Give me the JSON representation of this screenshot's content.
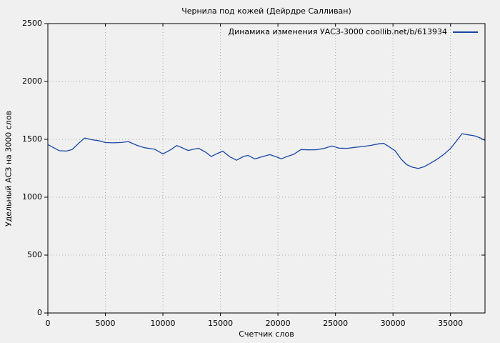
{
  "title": "Чернила под кожей (Дейрдре Салливан)",
  "legend": {
    "label": "Динамика изменения УАСЗ-3000 coollib.net/b/613934"
  },
  "chart_data": {
    "type": "line",
    "title": "Чернила под кожей (Дейрдре Салливан)",
    "xlabel": "Счетчик слов",
    "ylabel": "Удельный АСЗ на 3000 слов",
    "xlim": [
      0,
      38000
    ],
    "ylim": [
      0,
      2500
    ],
    "xticks": [
      0,
      5000,
      10000,
      15000,
      20000,
      25000,
      30000,
      35000
    ],
    "xtick_labels": [
      "0",
      "5000",
      "10000",
      "15000",
      "20000",
      "25000",
      "30000",
      "35000"
    ],
    "yticks": [
      0,
      500,
      1000,
      1500,
      2000,
      2500
    ],
    "ytick_labels": [
      "0",
      "500",
      "1000",
      "1500",
      "2000",
      "2500"
    ],
    "grid": true,
    "legend_position": "top-right-inside",
    "colors": {
      "background": "#f0f0f0",
      "grid": "#a8a8a8",
      "axis": "#000000",
      "line": "#1a47a5"
    },
    "series": [
      {
        "name": "Динамика изменения УАСЗ-3000 coollib.net/b/613934",
        "color": "#1a47a5",
        "points": [
          [
            0,
            1455
          ],
          [
            500,
            1428
          ],
          [
            1000,
            1402
          ],
          [
            1600,
            1399
          ],
          [
            2100,
            1411
          ],
          [
            2700,
            1468
          ],
          [
            3200,
            1512
          ],
          [
            3800,
            1497
          ],
          [
            4400,
            1489
          ],
          [
            5000,
            1472
          ],
          [
            5700,
            1470
          ],
          [
            6400,
            1473
          ],
          [
            7000,
            1481
          ],
          [
            7700,
            1450
          ],
          [
            8400,
            1428
          ],
          [
            9300,
            1414
          ],
          [
            10000,
            1374
          ],
          [
            10700,
            1412
          ],
          [
            11200,
            1447
          ],
          [
            11700,
            1426
          ],
          [
            12200,
            1404
          ],
          [
            12700,
            1415
          ],
          [
            13100,
            1423
          ],
          [
            13700,
            1390
          ],
          [
            14200,
            1352
          ],
          [
            14700,
            1376
          ],
          [
            15200,
            1398
          ],
          [
            15800,
            1350
          ],
          [
            16400,
            1320
          ],
          [
            17000,
            1352
          ],
          [
            17400,
            1362
          ],
          [
            18000,
            1331
          ],
          [
            18700,
            1352
          ],
          [
            19300,
            1368
          ],
          [
            19800,
            1351
          ],
          [
            20300,
            1332
          ],
          [
            20800,
            1352
          ],
          [
            21400,
            1372
          ],
          [
            22000,
            1412
          ],
          [
            22600,
            1409
          ],
          [
            23300,
            1410
          ],
          [
            24000,
            1421
          ],
          [
            24700,
            1443
          ],
          [
            25300,
            1424
          ],
          [
            26000,
            1422
          ],
          [
            26700,
            1431
          ],
          [
            27400,
            1438
          ],
          [
            28100,
            1448
          ],
          [
            28800,
            1462
          ],
          [
            29200,
            1465
          ],
          [
            29700,
            1434
          ],
          [
            30200,
            1400
          ],
          [
            30700,
            1330
          ],
          [
            31200,
            1281
          ],
          [
            31700,
            1259
          ],
          [
            32200,
            1249
          ],
          [
            32700,
            1263
          ],
          [
            33200,
            1291
          ],
          [
            33800,
            1326
          ],
          [
            34400,
            1368
          ],
          [
            35000,
            1421
          ],
          [
            35500,
            1482
          ],
          [
            36000,
            1549
          ],
          [
            36600,
            1538
          ],
          [
            37100,
            1530
          ],
          [
            37600,
            1512
          ],
          [
            38000,
            1490
          ]
        ]
      }
    ]
  }
}
